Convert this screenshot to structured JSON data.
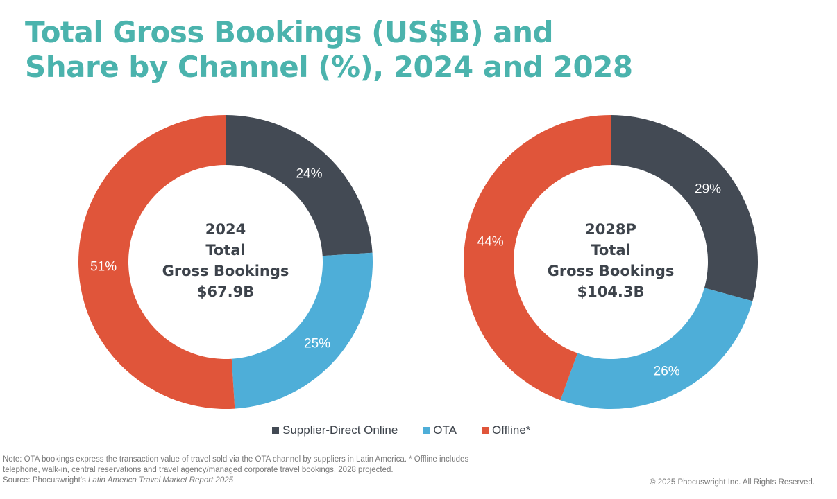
{
  "title_line1": "Total Gross Bookings (US$B) and",
  "title_line2": "Share by Channel (%), 2024 and 2028",
  "chart_data": [
    {
      "type": "pie",
      "donut": true,
      "center_label": [
        "2024",
        "Total",
        "Gross Bookings",
        "$67.9B"
      ],
      "categories": [
        "Supplier-Direct Online",
        "OTA",
        "Offline*"
      ],
      "values": [
        24,
        25,
        51
      ],
      "labels": [
        "24%",
        "25%",
        "51%"
      ],
      "colors": [
        "#434a54",
        "#4eaed8",
        "#e0553a"
      ]
    },
    {
      "type": "pie",
      "donut": true,
      "center_label": [
        "2028P",
        "Total",
        "Gross Bookings",
        "$104.3B"
      ],
      "categories": [
        "Supplier-Direct Online",
        "OTA",
        "Offline*"
      ],
      "values": [
        29,
        26,
        44
      ],
      "labels": [
        "29%",
        "26%",
        "44%"
      ],
      "colors": [
        "#434a54",
        "#4eaed8",
        "#e0553a"
      ]
    }
  ],
  "legend": [
    {
      "label": "Supplier-Direct Online",
      "color": "#434a54"
    },
    {
      "label": "OTA",
      "color": "#4eaed8"
    },
    {
      "label": "Offline*",
      "color": "#e0553a"
    }
  ],
  "note": {
    "line1": "Note: OTA bookings express the transaction value of travel sold via the OTA channel by suppliers in Latin America. *  Offline includes",
    "line2": "telephone, walk-in, central reservations and travel agency/managed corporate travel bookings. 2028 projected.",
    "source_prefix": "Source: Phocuswright's ",
    "source_title": "Latin America Travel Market Report 2025"
  },
  "copyright": "© 2025 Phocuswright Inc. All Rights Reserved."
}
